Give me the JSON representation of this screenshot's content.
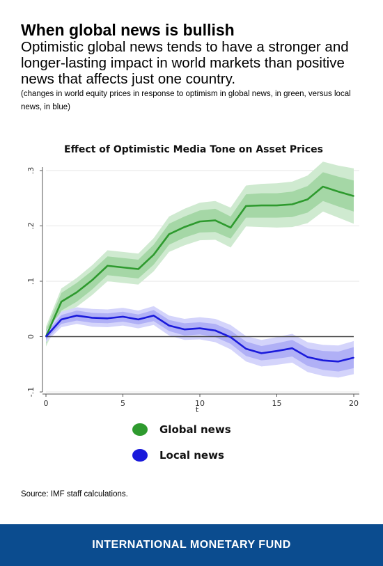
{
  "header": {
    "title": "When global news is bullish",
    "subtitle": "Optimistic global news tends to have a stronger and longer-lasting impact in world markets than positive news that affects just one country.",
    "note": "(changes in world equity prices in response to optimism in global news, in green, versus local news, in blue)"
  },
  "chart_data": {
    "type": "line",
    "title": "Effect of Optimistic Media Tone on Asset Prices",
    "xlabel": "t",
    "ylabel": "",
    "xlim": [
      0,
      20
    ],
    "ylim": [
      -0.1,
      0.3
    ],
    "xticks": [
      0,
      5,
      10,
      15,
      20
    ],
    "yticks": [
      -0.1,
      0,
      0.1,
      0.2,
      0.3
    ],
    "ytick_labels": [
      "-.1",
      "0",
      ".1",
      ".2",
      ".3"
    ],
    "grid": true,
    "reference_line": 0,
    "legend_position": "bottom",
    "x": [
      0,
      1,
      2,
      3,
      4,
      5,
      6,
      7,
      8,
      9,
      10,
      11,
      12,
      13,
      14,
      15,
      16,
      17,
      18,
      19,
      20
    ],
    "series": [
      {
        "name": "Global news",
        "color": "#2e9a2e",
        "values": [
          0,
          0.063,
          0.08,
          0.102,
          0.128,
          0.125,
          0.122,
          0.148,
          0.185,
          0.198,
          0.208,
          0.21,
          0.197,
          0.236,
          0.237,
          0.237,
          0.239,
          0.248,
          0.271,
          0.262,
          0.254
        ],
        "band_inner": [
          0.012,
          0.016,
          0.017,
          0.017,
          0.017,
          0.017,
          0.017,
          0.018,
          0.019,
          0.019,
          0.02,
          0.021,
          0.02,
          0.021,
          0.022,
          0.022,
          0.023,
          0.024,
          0.026,
          0.027,
          0.028
        ],
        "band_outer": [
          0.018,
          0.024,
          0.026,
          0.027,
          0.028,
          0.028,
          0.028,
          0.03,
          0.032,
          0.033,
          0.034,
          0.035,
          0.036,
          0.037,
          0.039,
          0.04,
          0.041,
          0.043,
          0.045,
          0.047,
          0.05
        ]
      },
      {
        "name": "Local news",
        "color": "#1a1adb",
        "values": [
          0,
          0.031,
          0.038,
          0.034,
          0.033,
          0.036,
          0.031,
          0.038,
          0.02,
          0.013,
          0.015,
          0.011,
          -0.001,
          -0.022,
          -0.03,
          -0.026,
          -0.021,
          -0.037,
          -0.043,
          -0.045,
          -0.038
        ],
        "band_inner": [
          0.006,
          0.008,
          0.009,
          0.009,
          0.009,
          0.009,
          0.009,
          0.01,
          0.01,
          0.011,
          0.011,
          0.012,
          0.012,
          0.013,
          0.013,
          0.014,
          0.015,
          0.016,
          0.017,
          0.018,
          0.019
        ],
        "band_outer": [
          0.01,
          0.014,
          0.015,
          0.016,
          0.016,
          0.016,
          0.016,
          0.017,
          0.018,
          0.019,
          0.02,
          0.021,
          0.022,
          0.023,
          0.024,
          0.025,
          0.026,
          0.027,
          0.028,
          0.029,
          0.03
        ]
      }
    ]
  },
  "legend": [
    {
      "label": "Global news",
      "color": "#2e9a2e"
    },
    {
      "label": "Local news",
      "color": "#1a1adb"
    }
  ],
  "source": "Source: IMF staff calculations.",
  "footer": {
    "org": "INTERNATIONAL MONETARY FUND"
  }
}
